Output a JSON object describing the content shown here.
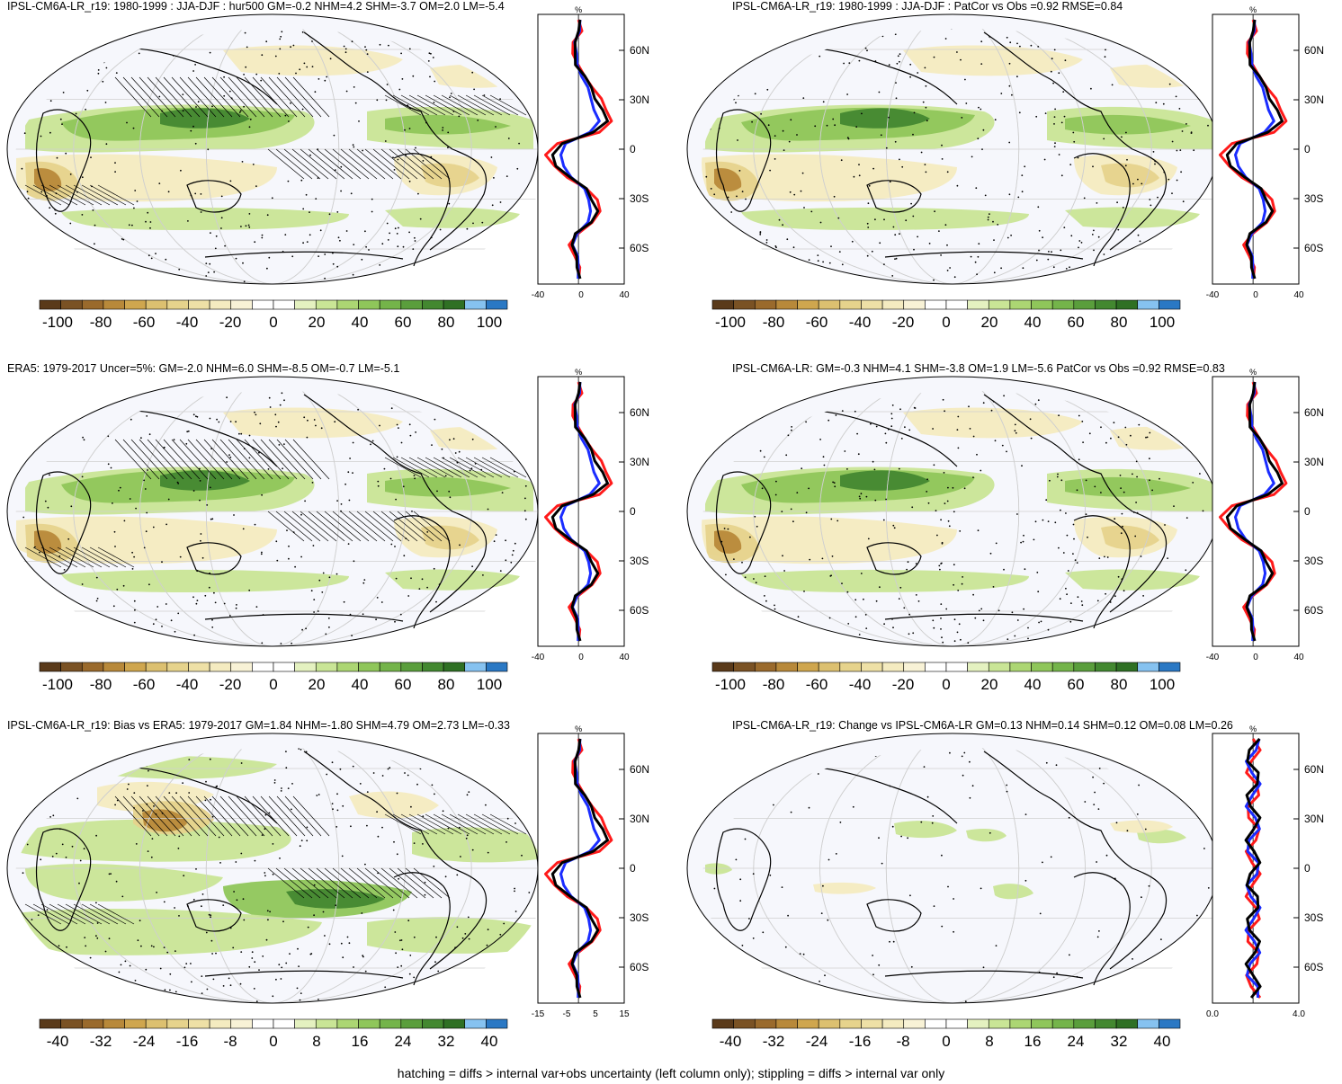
{
  "panels": [
    {
      "id": "p1",
      "title": "IPSL-CM6A-LR_r19: 1980-1999 : JJA-DJF : hur500 GM=-0.2 NHM=4.2 SHM=-3.7 OM=2.0 LM=-5.4",
      "colorbar_labels": [
        "-100",
        "-80",
        "-60",
        "-40",
        "-20",
        "0",
        "20",
        "40",
        "60",
        "80",
        "100"
      ],
      "profile_xticks": [
        "-40",
        "0",
        "40"
      ],
      "profile_unit": "%",
      "profile_yticks": [
        "60N",
        "30N",
        "0",
        "30S",
        "60S"
      ],
      "hatching": true
    },
    {
      "id": "p2",
      "title": "IPSL-CM6A-LR_r19: 1980-1999 : JJA-DJF : PatCor vs Obs =0.92 RMSE=0.84",
      "colorbar_labels": [
        "-100",
        "-80",
        "-60",
        "-40",
        "-20",
        "0",
        "20",
        "40",
        "60",
        "80",
        "100"
      ],
      "profile_xticks": [
        "-40",
        "0",
        "40"
      ],
      "profile_unit": "%",
      "profile_yticks": [
        "60N",
        "30N",
        "0",
        "30S",
        "60S"
      ],
      "hatching": false
    },
    {
      "id": "p3",
      "title": "ERA5: 1979-2017 Uncer=5%: GM=-2.0 NHM=6.0 SHM=-8.5 OM=-0.7 LM=-5.1",
      "colorbar_labels": [
        "-100",
        "-80",
        "-60",
        "-40",
        "-20",
        "0",
        "20",
        "40",
        "60",
        "80",
        "100"
      ],
      "profile_xticks": [
        "-40",
        "0",
        "40"
      ],
      "profile_unit": "%",
      "profile_yticks": [
        "60N",
        "30N",
        "0",
        "30S",
        "60S"
      ],
      "hatching": true
    },
    {
      "id": "p4",
      "title": "IPSL-CM6A-LR: GM=-0.3 NHM=4.1 SHM=-3.8 OM=1.9 LM=-5.6 PatCor vs Obs =0.92 RMSE=0.83",
      "colorbar_labels": [
        "-100",
        "-80",
        "-60",
        "-40",
        "-20",
        "0",
        "20",
        "40",
        "60",
        "80",
        "100"
      ],
      "profile_xticks": [
        "-40",
        "0",
        "40"
      ],
      "profile_unit": "%",
      "profile_yticks": [
        "60N",
        "30N",
        "0",
        "30S",
        "60S"
      ],
      "hatching": false
    },
    {
      "id": "p5",
      "title": "IPSL-CM6A-LR_r19: Bias vs ERA5: 1979-2017 GM=1.84 NHM=-1.80 SHM=4.79 OM=2.73 LM=-0.33",
      "colorbar_labels": [
        "-40",
        "-32",
        "-24",
        "-16",
        "-8",
        "0",
        "8",
        "16",
        "24",
        "32",
        "40"
      ],
      "profile_xticks": [
        "-15",
        "-5",
        "5",
        "15"
      ],
      "profile_unit": "%",
      "profile_yticks": [
        "60N",
        "30N",
        "0",
        "30S",
        "60S"
      ],
      "hatching": true
    },
    {
      "id": "p6",
      "title": "IPSL-CM6A-LR_r19: Change vs IPSL-CM6A-LR GM=0.13 NHM=0.14 SHM=0.12 OM=0.08 LM=0.26",
      "colorbar_labels": [
        "-40",
        "-32",
        "-24",
        "-16",
        "-8",
        "0",
        "8",
        "16",
        "24",
        "32",
        "40"
      ],
      "profile_xticks": [
        "0.0",
        "4.0"
      ],
      "profile_unit": "%",
      "profile_yticks": [
        "60N",
        "30N",
        "0",
        "30S",
        "60S"
      ],
      "hatching": false
    }
  ],
  "colorbar_colors": [
    "#5a3a1a",
    "#7a5224",
    "#9a6a2c",
    "#b8893a",
    "#cfa64e",
    "#dcc070",
    "#e6d38c",
    "#eee0a6",
    "#f4ebc0",
    "#f8f2d6",
    "#ffffff",
    "#ffffff",
    "#e4f1c0",
    "#c9e596",
    "#acd673",
    "#8fc65a",
    "#74b44a",
    "#5a9e3c",
    "#438830",
    "#2f7024",
    "#86c2f0",
    "#2a78c4"
  ],
  "map_colors": {
    "brown": "#b8893a",
    "tan": "#e6d38c",
    "cream": "#f4ebc0",
    "lightgreen": "#c9e596",
    "green": "#8fc65a",
    "darkgreen": "#438830",
    "background": "#f6f7fc"
  },
  "line_colors": {
    "red": "#ff1a1a",
    "blue": "#1a2cff",
    "black": "#000000"
  },
  "footnote": "hatching = diffs > internal var+obs uncertainty (left column only); stippling = diffs > internal var only"
}
